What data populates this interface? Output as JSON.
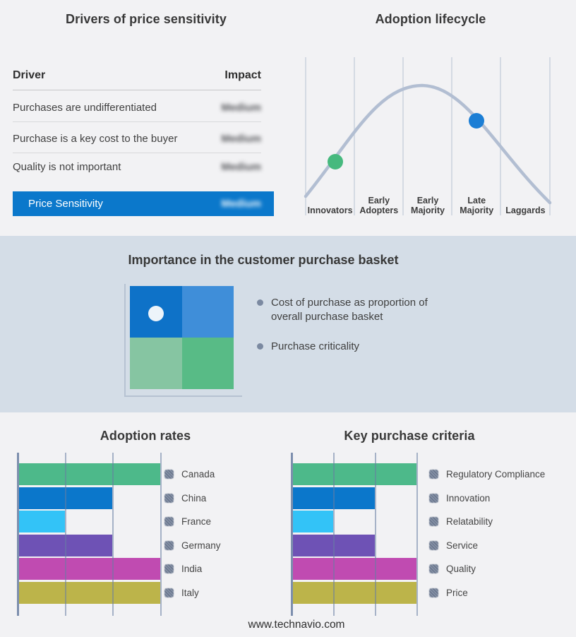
{
  "page": {
    "background": "#f2f2f4",
    "band_background": "#d4dde7",
    "footer_url": "www.technavio.com"
  },
  "basket": {
    "title": "Importance in the customer purchase basket",
    "bullets": [
      "Cost of purchase as proportion of overall purchase basket",
      "Purchase criticality"
    ],
    "quadrant_colors": {
      "top_left": "#0e72c8",
      "top_right": "#3f8ed9",
      "bottom_left": "#86c5a2",
      "bottom_right": "#58bb86"
    },
    "marker": "white dot in top-left quadrant"
  },
  "chart_data": [
    {
      "type": "table",
      "title": "Drivers of price sensitivity",
      "columns": [
        "Driver",
        "Impact"
      ],
      "rows": [
        [
          "Purchases are undifferentiated",
          "Medium"
        ],
        [
          "Purchase is a key cost to the buyer",
          "Medium"
        ],
        [
          "Quality is not important",
          "Medium"
        ],
        [
          "Price Sensitivity",
          "Medium"
        ]
      ],
      "highlight_row_index": 3,
      "highlight_color": "#0b78cb",
      "impact_values_blurred": true
    },
    {
      "type": "line",
      "title": "Adoption lifecycle",
      "categories": [
        "Innovators",
        "Early Adopters",
        "Early Majority",
        "Late Majority",
        "Laggards"
      ],
      "curve_shape": "bell",
      "line_color": "#b2bed2",
      "gridlines": true,
      "markers": [
        {
          "stage": "Innovators",
          "position": "rising slope",
          "color": "#46b97e"
        },
        {
          "stage": "Late Majority",
          "position": "falling slope",
          "color": "#1b7ed5"
        }
      ]
    },
    {
      "type": "bar",
      "title": "Adoption rates",
      "orientation": "horizontal",
      "categories": [
        "Canada",
        "China",
        "France",
        "Germany",
        "India",
        "Italy"
      ],
      "values": [
        3,
        2,
        1,
        2,
        3,
        3
      ],
      "colors": [
        "#4db98a",
        "#0b77cb",
        "#33c3f7",
        "#6e52b5",
        "#c04bb1",
        "#bcb44a"
      ],
      "xlim": [
        0,
        3
      ],
      "gridlines": true,
      "legend_position": "right",
      "value_axis_labels": false
    },
    {
      "type": "bar",
      "title": "Key purchase criteria",
      "orientation": "horizontal",
      "categories": [
        "Regulatory Compliance",
        "Innovation",
        "Relatability",
        "Service",
        "Quality",
        "Price"
      ],
      "values": [
        3,
        2,
        1,
        2,
        3,
        3
      ],
      "colors": [
        "#4db98a",
        "#0b77cb",
        "#33c3f7",
        "#6e52b5",
        "#c04bb1",
        "#bcb44a"
      ],
      "xlim": [
        0,
        3
      ],
      "gridlines": true,
      "legend_position": "right",
      "value_axis_labels": false
    }
  ]
}
